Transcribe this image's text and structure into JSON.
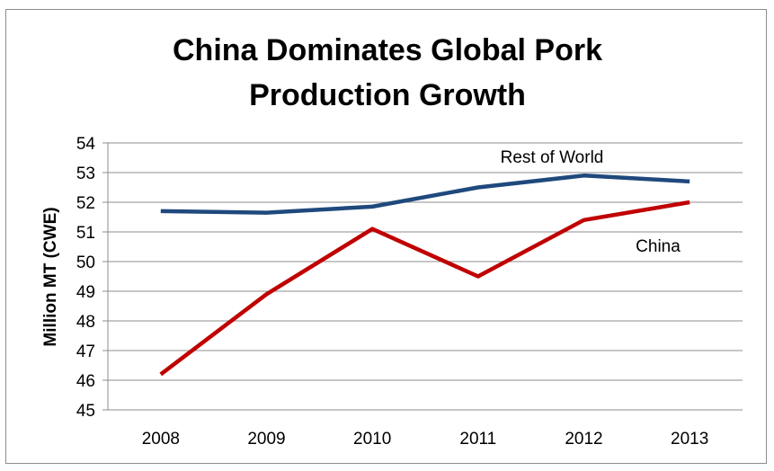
{
  "chart_data": {
    "type": "line",
    "title_lines": [
      "China Dominates Global Pork",
      "Production Growth"
    ],
    "ylabel": "Million MT (CWE)",
    "xlabel": "",
    "categories": [
      "2008",
      "2009",
      "2010",
      "2011",
      "2012",
      "2013"
    ],
    "ylim": [
      45,
      54
    ],
    "yticks": [
      45,
      46,
      47,
      48,
      49,
      50,
      51,
      52,
      53,
      54
    ],
    "grid": true,
    "legend": "none",
    "series": [
      {
        "name": "Rest of World",
        "color": "#1f497d",
        "values": [
          51.7,
          51.65,
          51.85,
          52.5,
          52.9,
          52.7
        ]
      },
      {
        "name": "China",
        "color": "#c00000",
        "values": [
          46.2,
          48.9,
          51.1,
          49.5,
          51.4,
          52.0
        ]
      }
    ]
  }
}
